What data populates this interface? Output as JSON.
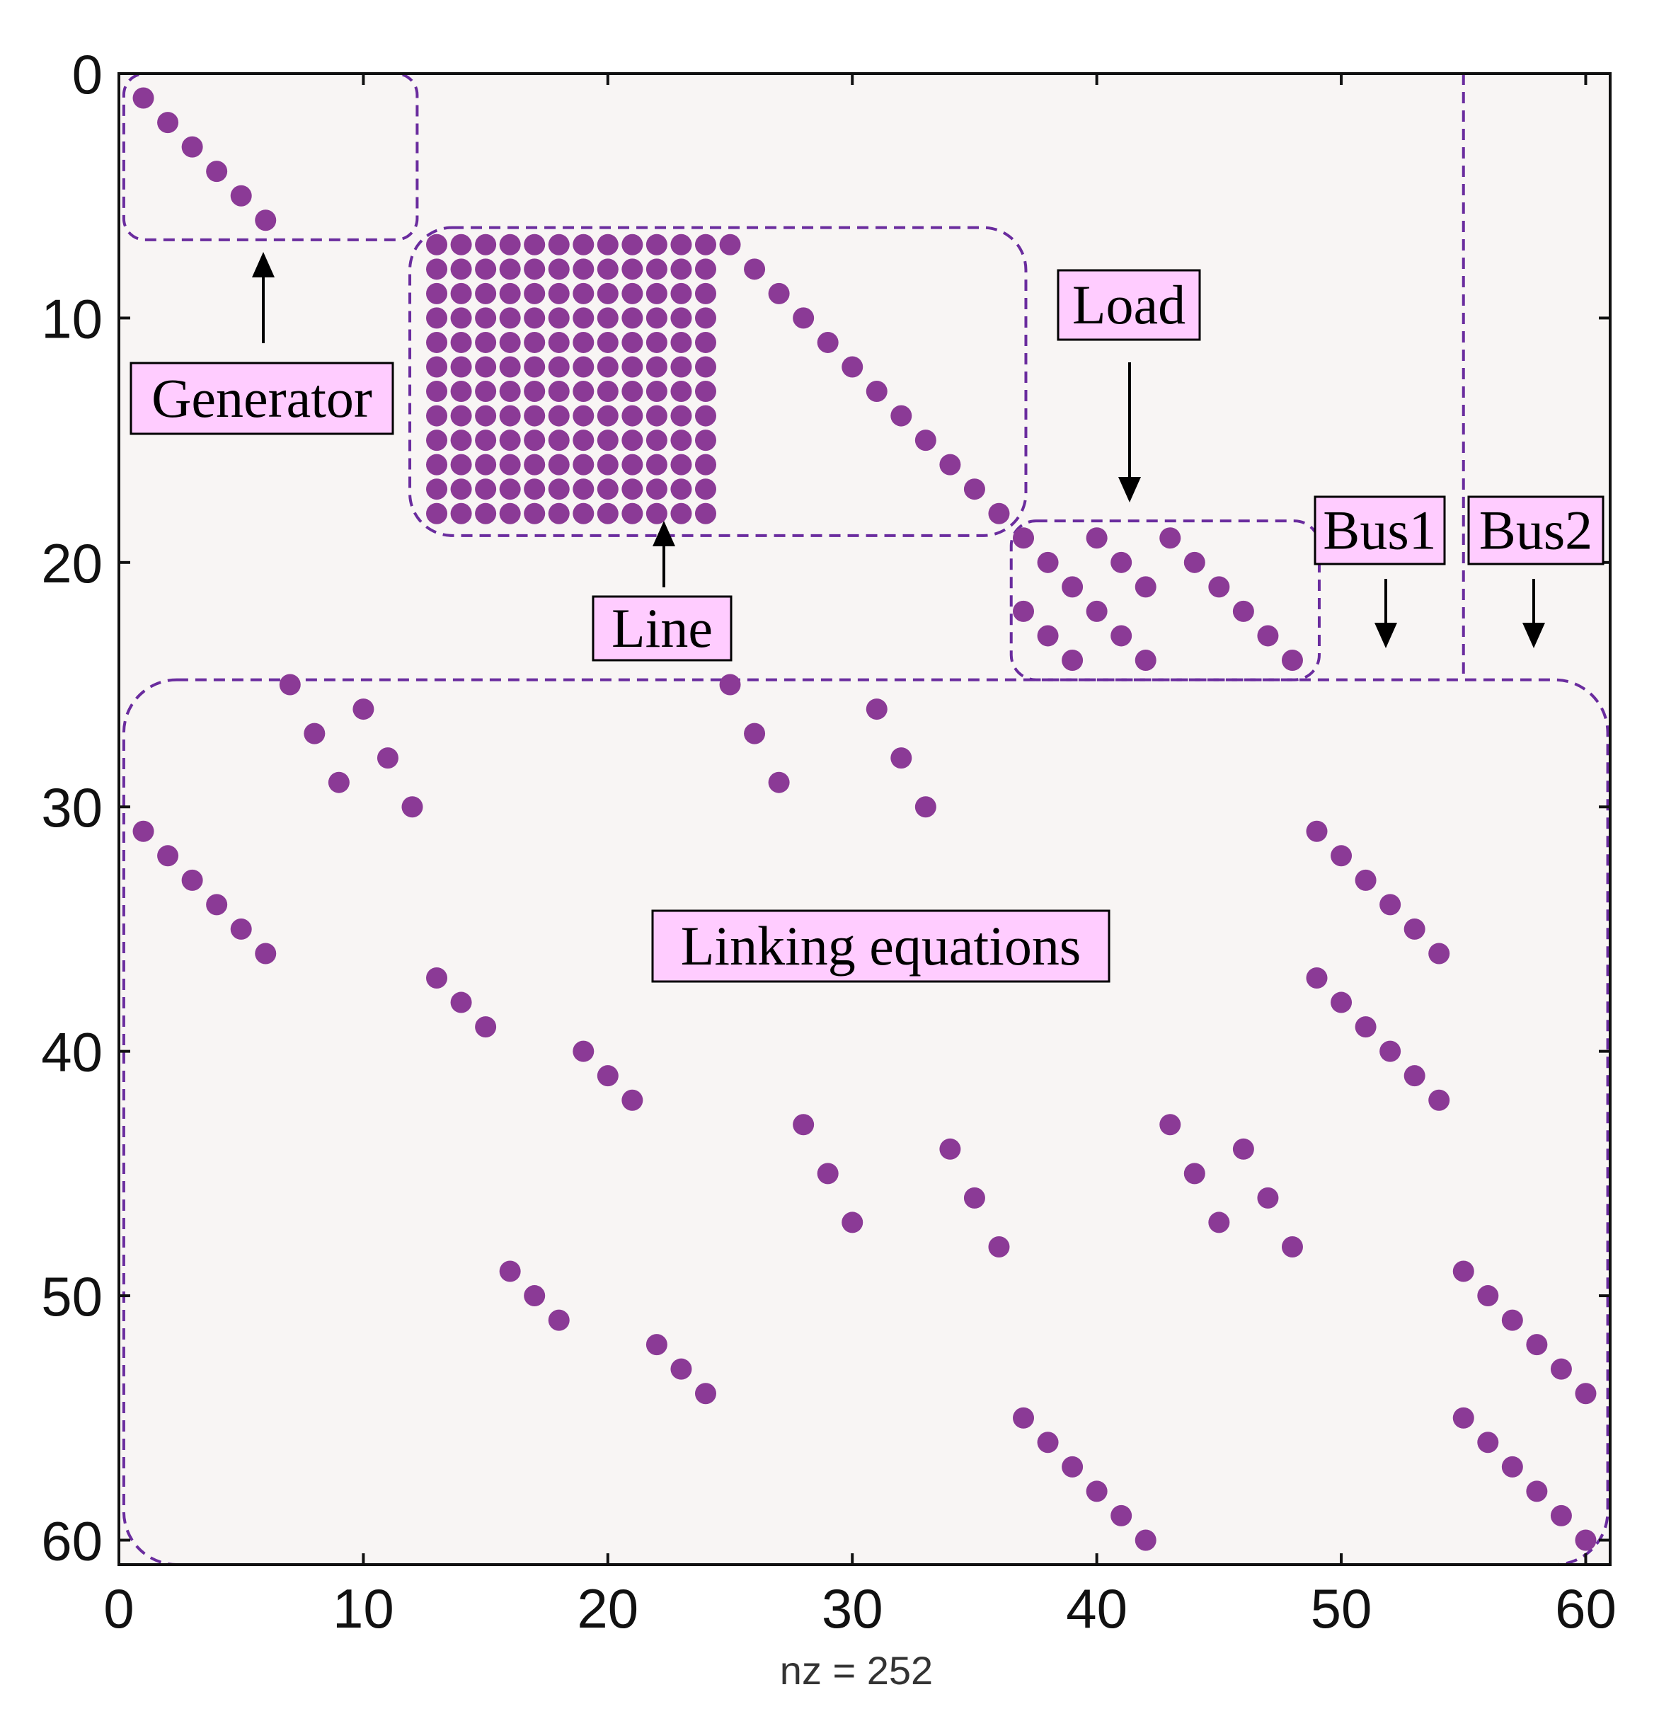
{
  "chart_data": {
    "type": "scatter",
    "title": "",
    "xlabel": "nz = 252",
    "ylabel": "",
    "xlim": [
      0,
      61
    ],
    "ylim": [
      61,
      0
    ],
    "y_axis_reversed": true,
    "grid": false,
    "xticks": [
      0,
      10,
      20,
      30,
      40,
      50,
      60
    ],
    "yticks": [
      0,
      10,
      20,
      30,
      40,
      50,
      60
    ],
    "marker_color": "#8B3A96",
    "plot_background": "#F8F5F4",
    "region_border_color": "#6A2C9E",
    "label_box_color": "#FFCCFF",
    "dense_block": {
      "x_from": 13,
      "x_to": 24,
      "y_from": 7,
      "y_to": 18
    },
    "points": [
      [
        1,
        1
      ],
      [
        2,
        2
      ],
      [
        3,
        3
      ],
      [
        4,
        4
      ],
      [
        5,
        5
      ],
      [
        6,
        6
      ],
      [
        25,
        7
      ],
      [
        26,
        8
      ],
      [
        27,
        9
      ],
      [
        28,
        10
      ],
      [
        29,
        11
      ],
      [
        30,
        12
      ],
      [
        31,
        13
      ],
      [
        32,
        14
      ],
      [
        33,
        15
      ],
      [
        34,
        16
      ],
      [
        35,
        17
      ],
      [
        36,
        18
      ],
      [
        37,
        19
      ],
      [
        38,
        20
      ],
      [
        39,
        21
      ],
      [
        40,
        22
      ],
      [
        41,
        23
      ],
      [
        42,
        24
      ],
      [
        40,
        19
      ],
      [
        41,
        20
      ],
      [
        42,
        21
      ],
      [
        37,
        22
      ],
      [
        38,
        23
      ],
      [
        39,
        24
      ],
      [
        43,
        19
      ],
      [
        44,
        20
      ],
      [
        45,
        21
      ],
      [
        46,
        22
      ],
      [
        47,
        23
      ],
      [
        48,
        24
      ],
      [
        7,
        25
      ],
      [
        8,
        27
      ],
      [
        9,
        29
      ],
      [
        10,
        26
      ],
      [
        11,
        28
      ],
      [
        12,
        30
      ],
      [
        25,
        25
      ],
      [
        26,
        27
      ],
      [
        27,
        29
      ],
      [
        31,
        26
      ],
      [
        32,
        28
      ],
      [
        33,
        30
      ],
      [
        1,
        31
      ],
      [
        2,
        32
      ],
      [
        3,
        33
      ],
      [
        4,
        34
      ],
      [
        5,
        35
      ],
      [
        6,
        36
      ],
      [
        49,
        31
      ],
      [
        50,
        32
      ],
      [
        51,
        33
      ],
      [
        52,
        34
      ],
      [
        53,
        35
      ],
      [
        54,
        36
      ],
      [
        13,
        37
      ],
      [
        14,
        38
      ],
      [
        15,
        39
      ],
      [
        49,
        37
      ],
      [
        50,
        38
      ],
      [
        51,
        39
      ],
      [
        52,
        40
      ],
      [
        53,
        41
      ],
      [
        54,
        42
      ],
      [
        19,
        40
      ],
      [
        20,
        41
      ],
      [
        21,
        42
      ],
      [
        28,
        43
      ],
      [
        29,
        45
      ],
      [
        30,
        47
      ],
      [
        34,
        44
      ],
      [
        35,
        46
      ],
      [
        36,
        48
      ],
      [
        43,
        43
      ],
      [
        44,
        45
      ],
      [
        45,
        47
      ],
      [
        46,
        44
      ],
      [
        47,
        46
      ],
      [
        48,
        48
      ],
      [
        16,
        49
      ],
      [
        17,
        50
      ],
      [
        18,
        51
      ],
      [
        22,
        52
      ],
      [
        23,
        53
      ],
      [
        24,
        54
      ],
      [
        55,
        49
      ],
      [
        56,
        50
      ],
      [
        57,
        51
      ],
      [
        58,
        52
      ],
      [
        59,
        53
      ],
      [
        60,
        54
      ],
      [
        37,
        55
      ],
      [
        38,
        56
      ],
      [
        39,
        57
      ],
      [
        40,
        58
      ],
      [
        41,
        59
      ],
      [
        42,
        60
      ],
      [
        55,
        55
      ],
      [
        56,
        56
      ],
      [
        57,
        57
      ],
      [
        58,
        58
      ],
      [
        59,
        59
      ],
      [
        60,
        60
      ]
    ],
    "annotations": [
      {
        "label": "Generator"
      },
      {
        "label": "Line"
      },
      {
        "label": "Load"
      },
      {
        "label": "Bus1"
      },
      {
        "label": "Bus2"
      },
      {
        "label": "Linking equations"
      }
    ]
  }
}
